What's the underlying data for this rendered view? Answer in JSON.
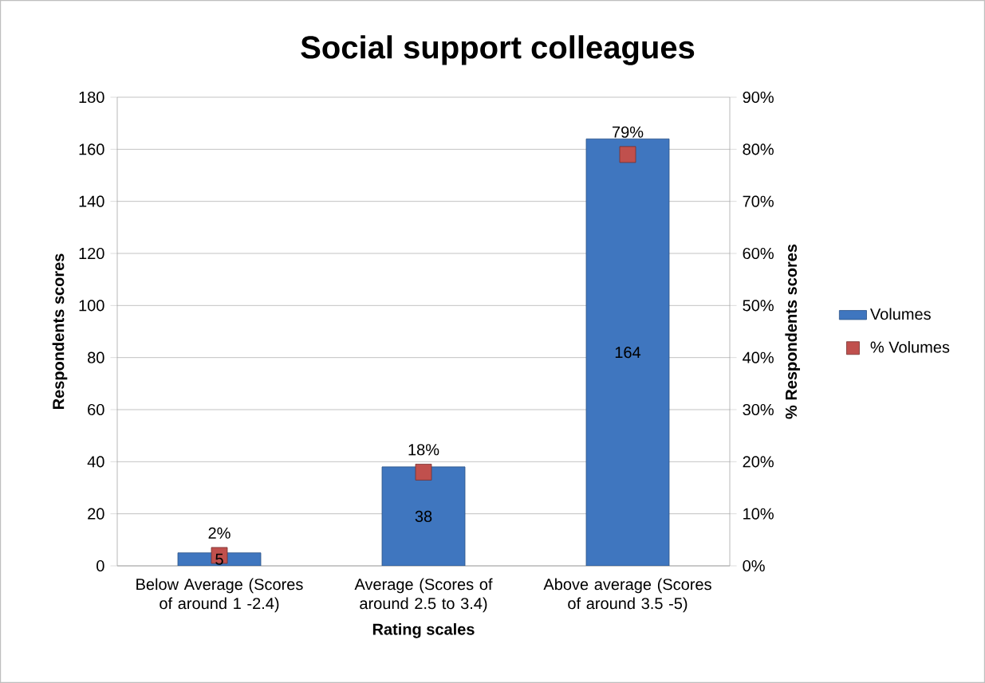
{
  "chart_data": {
    "type": "bar",
    "title": "Social support colleagues",
    "xlabel": "Rating scales",
    "ylabel": "Respondents scores",
    "y2label": "% Respondents scores",
    "categories": [
      "Below Average (Scores of around 1 -2.4)",
      "Average (Scores of around 2.5 to 3.4)",
      "Above average (Scores of around 3.5 -5)"
    ],
    "series": [
      {
        "name": "Volumes",
        "color": "#3f76bf",
        "values": [
          5,
          38,
          164
        ],
        "value_labels": [
          "5",
          "38",
          "164"
        ]
      },
      {
        "name": "% Volumes",
        "type": "scatter",
        "axis": "y2",
        "marker": "square",
        "color": "#c0504d",
        "values": [
          2,
          18,
          79
        ],
        "value_labels": [
          "2%",
          "18%",
          "79%"
        ]
      }
    ],
    "ylim": [
      0,
      180
    ],
    "yticks": [
      0,
      20,
      40,
      60,
      80,
      100,
      120,
      140,
      160,
      180
    ],
    "y2lim": [
      0,
      90
    ],
    "y2ticks": [
      {
        "value": 0,
        "label": "0%"
      },
      {
        "value": 10,
        "label": "10%"
      },
      {
        "value": 20,
        "label": "20%"
      },
      {
        "value": 30,
        "label": "30%"
      },
      {
        "value": 40,
        "label": "40%"
      },
      {
        "value": 50,
        "label": "50%"
      },
      {
        "value": 60,
        "label": "60%"
      },
      {
        "value": 70,
        "label": "70%"
      },
      {
        "value": 80,
        "label": "80%"
      },
      {
        "value": 90,
        "label": "90%"
      }
    ],
    "grid": "y",
    "legend": "right"
  }
}
